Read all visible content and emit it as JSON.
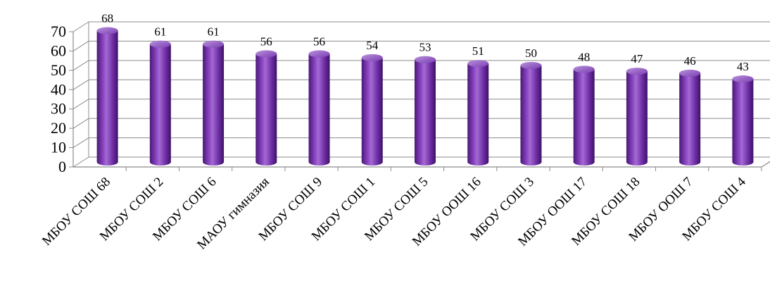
{
  "chart_data": {
    "type": "bar",
    "title": "",
    "xlabel": "",
    "ylabel": "",
    "ylim": [
      0,
      70
    ],
    "y_ticks": [
      0,
      10,
      20,
      30,
      40,
      50,
      60,
      70
    ],
    "grid": true,
    "legend": "none",
    "bar_style": "3d-cylinder",
    "categories": [
      "МБОУ СОШ 68",
      "МБОУ СОШ 2",
      "МБОУ СОШ 6",
      "МАОУ гимназия",
      "МБОУ СОШ 9",
      "МБОУ СОШ 1",
      "МБОУ СОШ 5",
      "МБОУ ООШ 16",
      "МБОУ СОШ 3",
      "МБОУ ООШ 17",
      "МБОУ СОШ 18",
      "МБОУ ООШ 7",
      "МБОУ СОШ 4"
    ],
    "values": [
      68,
      61,
      61,
      56,
      56,
      54,
      53,
      51,
      50,
      48,
      47,
      46,
      43
    ],
    "colors": {
      "bar": "#7030a0",
      "bar_dark": "#3f1466",
      "bar_light": "#b58ad6",
      "grid": "#8c8c8c"
    }
  }
}
